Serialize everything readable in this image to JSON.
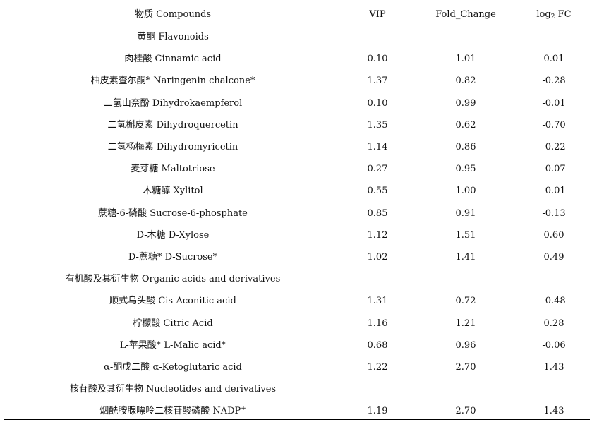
{
  "header": {
    "compound": "物质  Compounds",
    "vip": "VIP",
    "fold_change": "Fold_Change",
    "log_prefix": "log",
    "log_sub": "2",
    "log_suffix": " FC"
  },
  "rows": [
    {
      "type": "group",
      "name": "黄酮  Flavonoids"
    },
    {
      "type": "data",
      "name": "肉桂酸  Cinnamic acid",
      "vip": "0.10",
      "fc": "1.01",
      "log2fc": "0.01"
    },
    {
      "type": "data",
      "name": "柚皮素查尔酮* Naringenin chalcone*",
      "vip": "1.37",
      "fc": "0.82",
      "log2fc": "-0.28"
    },
    {
      "type": "data",
      "name": "二氢山奈酚  Dihydrokaempferol",
      "vip": "0.10",
      "fc": "0.99",
      "log2fc": "-0.01"
    },
    {
      "type": "data",
      "name": "二氢槲皮素  Dihydroquercetin",
      "vip": "1.35",
      "fc": "0.62",
      "log2fc": "-0.70"
    },
    {
      "type": "data",
      "name": "二氢杨梅素  Dihydromyricetin",
      "vip": "1.14",
      "fc": "0.86",
      "log2fc": "-0.22"
    },
    {
      "type": "data",
      "name": "麦芽糖  Maltotriose",
      "vip": "0.27",
      "fc": "0.95",
      "log2fc": "-0.07"
    },
    {
      "type": "data",
      "name": "木糖醇  Xylitol",
      "vip": "0.55",
      "fc": "1.00",
      "log2fc": "-0.01"
    },
    {
      "type": "data",
      "name": "蔗糖-6-磷酸  Sucrose-6-phosphate",
      "vip": "0.85",
      "fc": "0.91",
      "log2fc": "-0.13"
    },
    {
      "type": "data",
      "name": "D-木糖  D-Xylose",
      "vip": "1.12",
      "fc": "1.51",
      "log2fc": "0.60"
    },
    {
      "type": "data",
      "name": "D-蔗糖* D-Sucrose*",
      "vip": "1.02",
      "fc": "1.41",
      "log2fc": "0.49"
    },
    {
      "type": "group",
      "name": "有机酸及其衍生物  Organic acids and derivatives"
    },
    {
      "type": "data",
      "name": "顺式乌头酸  Cis-Aconitic acid",
      "vip": "1.31",
      "fc": "0.72",
      "log2fc": "-0.48"
    },
    {
      "type": "data",
      "name": "柠檬酸  Citric Acid",
      "vip": "1.16",
      "fc": "1.21",
      "log2fc": "0.28"
    },
    {
      "type": "data",
      "name": "L-苹果酸* L-Malic acid*",
      "vip": "0.68",
      "fc": "0.96",
      "log2fc": "-0.06"
    },
    {
      "type": "data",
      "name": "α-酮戊二酸  α-Ketoglutaric acid",
      "vip": "1.22",
      "fc": "2.70",
      "log2fc": "1.43"
    },
    {
      "type": "group",
      "name": "核苷酸及其衍生物  Nucleotides and derivatives"
    },
    {
      "type": "data",
      "name": "烟酰胺腺嘌呤二核苷酸磷酸  NADP",
      "name_sup": "+",
      "vip": "1.19",
      "fc": "2.70",
      "log2fc": "1.43"
    }
  ]
}
